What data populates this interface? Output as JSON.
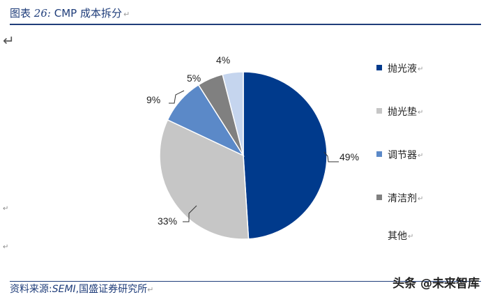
{
  "header": {
    "prefix": "图表",
    "number": "26:",
    "title": "CMP 成本拆分"
  },
  "footer": {
    "source_label": "资料来源:",
    "source_en": "SEMI",
    "source_rest": ",国盛证券研究所",
    "watermark": "头条 @未来智库"
  },
  "chart_data": {
    "type": "pie",
    "title": "CMP 成本拆分",
    "categories": [
      "抛光液",
      "抛光垫",
      "调节器",
      "清洁剂",
      "其他"
    ],
    "values": [
      49,
      33,
      9,
      5,
      4
    ],
    "value_labels": [
      "49%",
      "33%",
      "9%",
      "5%",
      "4%"
    ],
    "colors": [
      "#003a8c",
      "#c6c6c6",
      "#5b89c8",
      "#808080",
      "#c5d5ee"
    ],
    "legend_position": "right"
  }
}
